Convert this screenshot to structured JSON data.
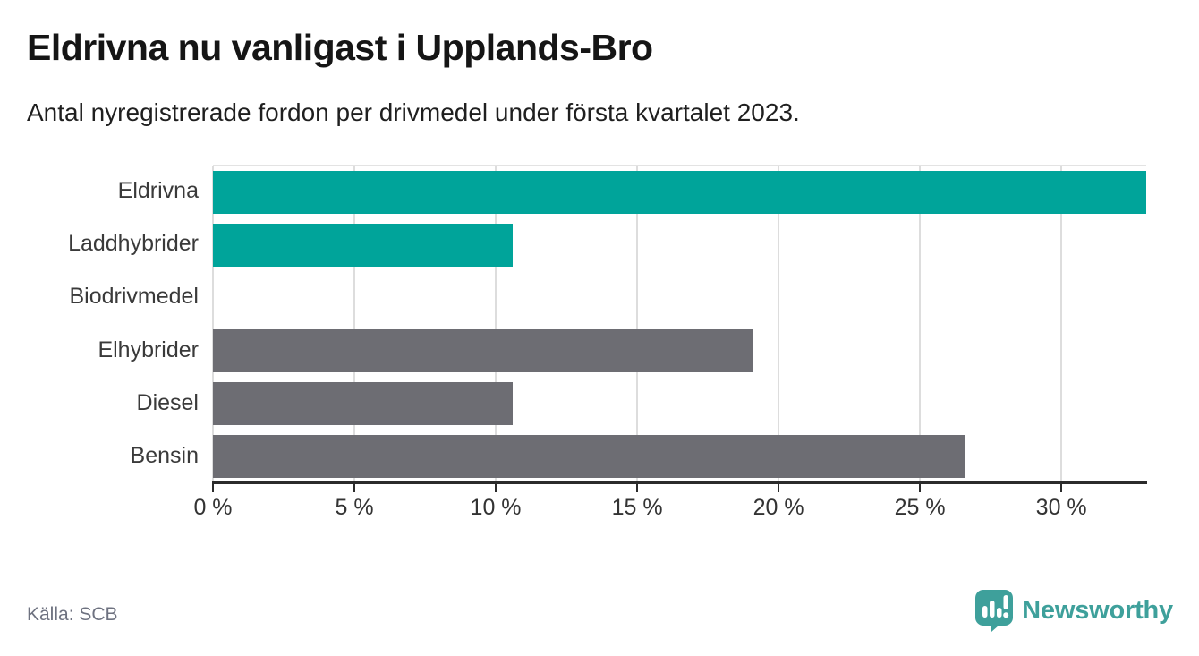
{
  "header": {
    "title": "Eldrivna nu vanligast i Upplands-Bro",
    "subtitle": "Antal nyregistrerade fordon per drivmedel under första kvartalet 2023."
  },
  "chart_data": {
    "type": "bar",
    "orientation": "horizontal",
    "title": "Eldrivna nu vanligast i Upplands-Bro",
    "subtitle": "Antal nyregistrerade fordon per drivmedel under första kvartalet 2023.",
    "categories": [
      "Eldrivna",
      "Laddhybrider",
      "Biodrivmedel",
      "Elhybrider",
      "Diesel",
      "Bensin"
    ],
    "values": [
      33.0,
      10.6,
      0,
      19.1,
      10.6,
      26.6
    ],
    "unit": "%",
    "bar_colors": [
      "#00a49a",
      "#00a49a",
      "#6d6d73",
      "#6d6d73",
      "#6d6d73",
      "#6d6d73"
    ],
    "xlim": [
      0,
      33
    ],
    "xticks": [
      0,
      5,
      10,
      15,
      20,
      25,
      30
    ],
    "xtick_labels": [
      "0 %",
      "5 %",
      "10 %",
      "15 %",
      "20 %",
      "25 %",
      "30 %"
    ],
    "grid": "vertical",
    "legend": "none"
  },
  "footer": {
    "source": "Källa: SCB",
    "brand_name": "Newsworthy",
    "brand_icon": "newsworthy-speech-bubble-chart-icon"
  },
  "colors": {
    "accent_teal": "#00a49a",
    "neutral_gray": "#6d6d73",
    "axis": "#2b2b2b",
    "gridline": "#dddddd",
    "brand_teal": "#3ea09b",
    "source_text": "#6e7280"
  }
}
